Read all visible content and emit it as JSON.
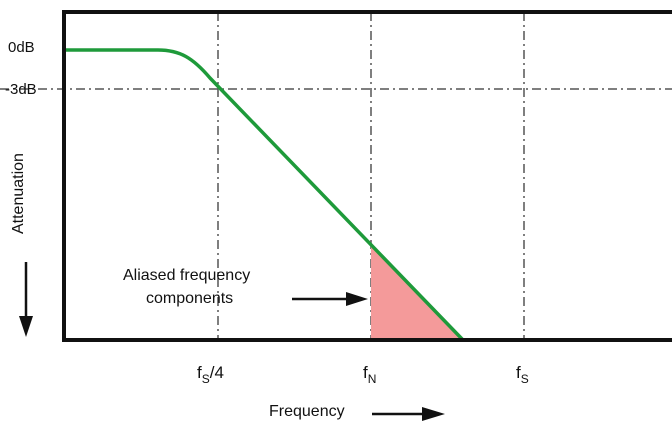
{
  "colors": {
    "frame": "#111111",
    "curve": "#1e9a3a",
    "grid": "#555555",
    "shade": "#f49a9a",
    "arrow": "#111111"
  },
  "labels": {
    "zero_db": "0dB",
    "minus3_db": "-3dB",
    "y_axis": "Attenuation",
    "x_axis": "Frequency",
    "aliased_line1": "Aliased frequency",
    "aliased_line2": "components",
    "fs4_main": "f",
    "fs4_sub": "S",
    "fs4_tail": "/4",
    "fn_main": "f",
    "fn_sub": "N",
    "fs_main": "f",
    "fs_sub": "S"
  }
}
